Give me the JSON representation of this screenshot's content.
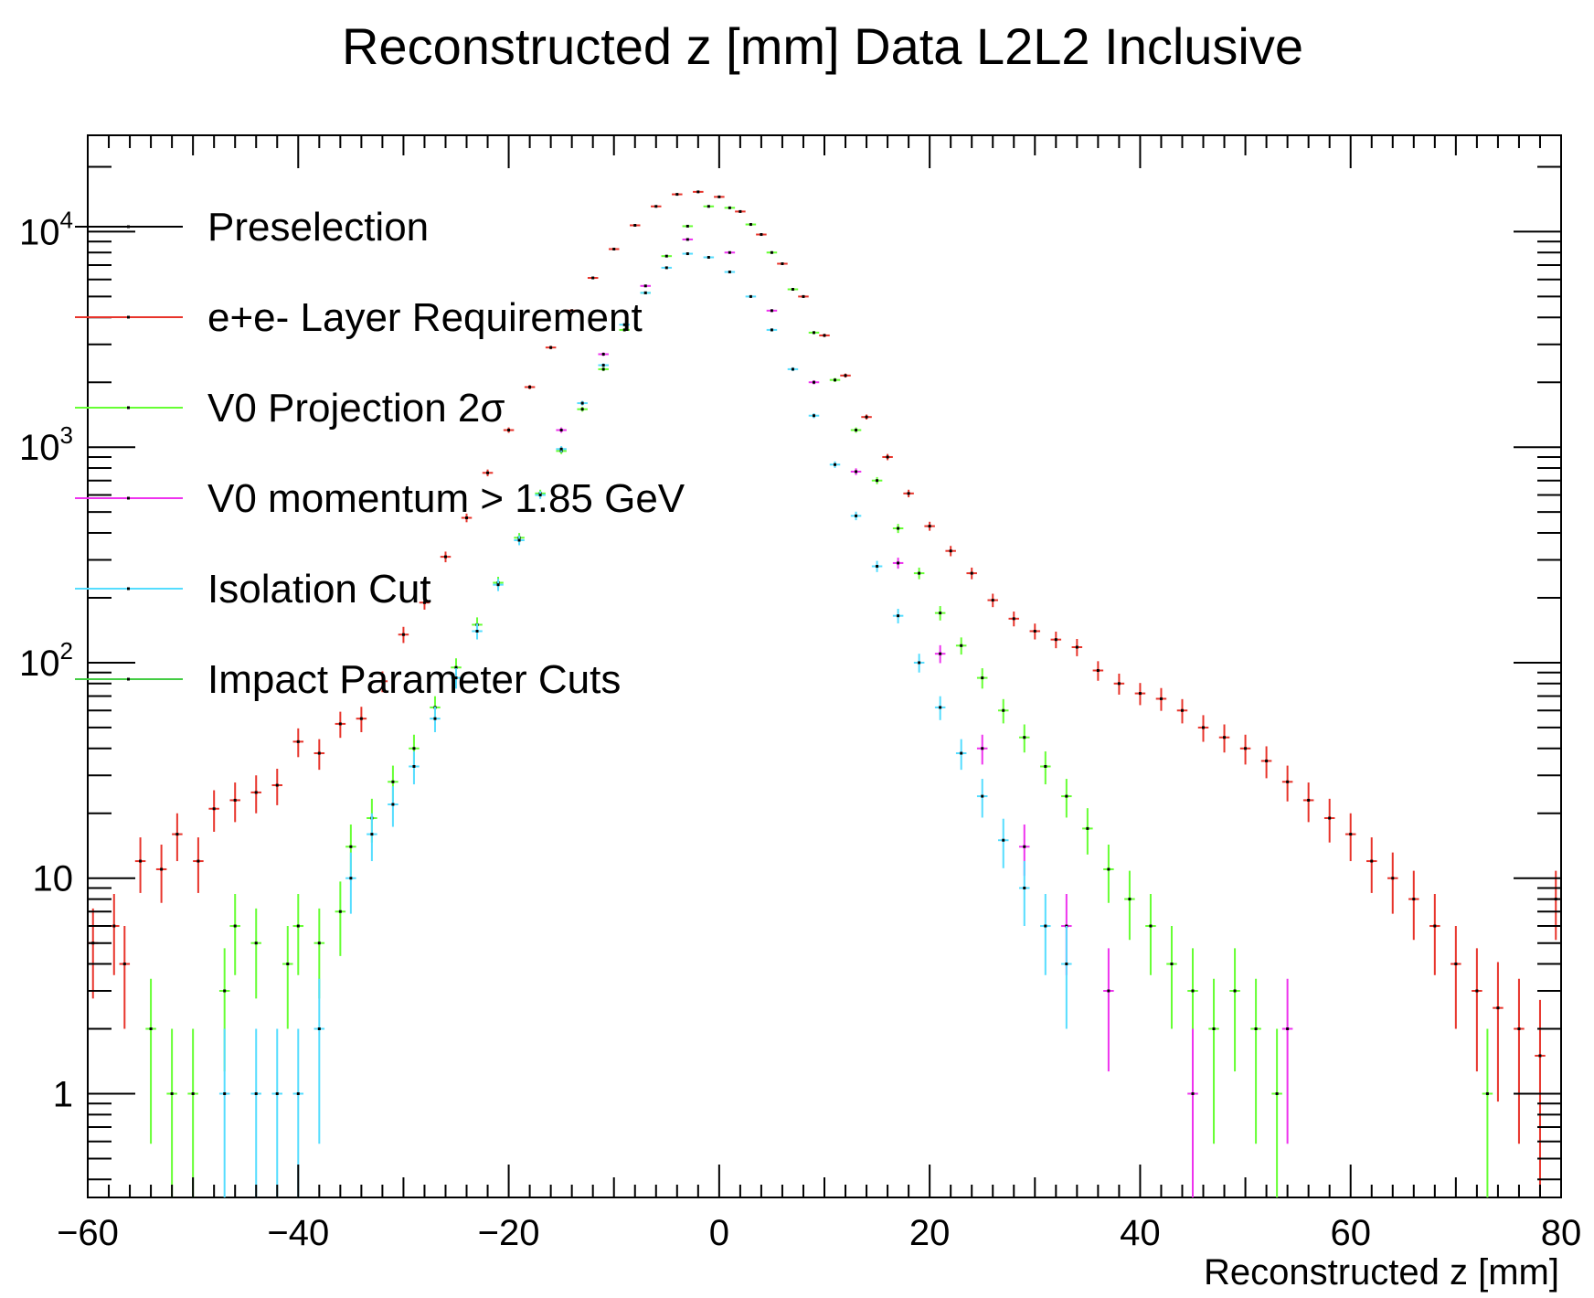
{
  "chart_data": {
    "type": "scatter",
    "title": "Reconstructed z [mm] Data L2L2 Inclusive",
    "xlabel": "Reconstructed z [mm]",
    "ylabel": "",
    "xlim": [
      -60,
      80
    ],
    "ylim": [
      0.33,
      28000
    ],
    "log_y": true,
    "grid": false,
    "legend_position": "top-left",
    "x_tick_labels": [
      "−60",
      "−40",
      "−20",
      "0",
      "20",
      "40",
      "60",
      "80"
    ],
    "x_tick_values": [
      -60,
      -40,
      -20,
      0,
      20,
      40,
      60,
      80
    ],
    "y_tick_labels": [
      {
        "value": 1,
        "base": "1",
        "exp": ""
      },
      {
        "value": 10,
        "base": "10",
        "exp": ""
      },
      {
        "value": 100,
        "base": "10",
        "exp": "2"
      },
      {
        "value": 1000,
        "base": "10",
        "exp": "3"
      },
      {
        "value": 10000,
        "base": "10",
        "exp": "4"
      }
    ],
    "series": [
      {
        "name": "Preselection",
        "color": "#000000",
        "sample": []
      },
      {
        "name": "e+e- Layer Requirement",
        "color": "#e8342b",
        "sample": [
          {
            "x": -59.5,
            "y": 5
          },
          {
            "x": -57.5,
            "y": 6
          },
          {
            "x": -56.5,
            "y": 4
          },
          {
            "x": -55,
            "y": 12
          },
          {
            "x": -53,
            "y": 11
          },
          {
            "x": -51.5,
            "y": 16
          },
          {
            "x": -49.5,
            "y": 12
          },
          {
            "x": -48,
            "y": 21
          },
          {
            "x": -46,
            "y": 23
          },
          {
            "x": -44,
            "y": 25
          },
          {
            "x": -42,
            "y": 27
          },
          {
            "x": -40,
            "y": 43
          },
          {
            "x": -38,
            "y": 38
          },
          {
            "x": -36,
            "y": 52
          },
          {
            "x": -34,
            "y": 55
          },
          {
            "x": -32,
            "y": 82
          },
          {
            "x": -30,
            "y": 135
          },
          {
            "x": -28,
            "y": 190
          },
          {
            "x": -26,
            "y": 310
          },
          {
            "x": -24,
            "y": 470
          },
          {
            "x": -22,
            "y": 760
          },
          {
            "x": -20,
            "y": 1200
          },
          {
            "x": -18,
            "y": 1900
          },
          {
            "x": -16,
            "y": 2900
          },
          {
            "x": -14,
            "y": 4300
          },
          {
            "x": -12,
            "y": 6100
          },
          {
            "x": -10,
            "y": 8300
          },
          {
            "x": -8,
            "y": 10700
          },
          {
            "x": -6,
            "y": 13100
          },
          {
            "x": -4,
            "y": 14900
          },
          {
            "x": -2,
            "y": 15300
          },
          {
            "x": 0,
            "y": 14500
          },
          {
            "x": 2,
            "y": 12400
          },
          {
            "x": 4,
            "y": 9700
          },
          {
            "x": 6,
            "y": 7100
          },
          {
            "x": 8,
            "y": 5000
          },
          {
            "x": 10,
            "y": 3300
          },
          {
            "x": 12,
            "y": 2150
          },
          {
            "x": 14,
            "y": 1380
          },
          {
            "x": 16,
            "y": 900
          },
          {
            "x": 18,
            "y": 610
          },
          {
            "x": 20,
            "y": 430
          },
          {
            "x": 22,
            "y": 330
          },
          {
            "x": 24,
            "y": 260
          },
          {
            "x": 26,
            "y": 195
          },
          {
            "x": 28,
            "y": 160
          },
          {
            "x": 30,
            "y": 140
          },
          {
            "x": 32,
            "y": 128
          },
          {
            "x": 34,
            "y": 118
          },
          {
            "x": 36,
            "y": 92
          },
          {
            "x": 38,
            "y": 80
          },
          {
            "x": 40,
            "y": 72
          },
          {
            "x": 42,
            "y": 68
          },
          {
            "x": 44,
            "y": 60
          },
          {
            "x": 46,
            "y": 50
          },
          {
            "x": 48,
            "y": 45
          },
          {
            "x": 50,
            "y": 40
          },
          {
            "x": 52,
            "y": 35
          },
          {
            "x": 54,
            "y": 28
          },
          {
            "x": 56,
            "y": 23
          },
          {
            "x": 58,
            "y": 19
          },
          {
            "x": 60,
            "y": 16
          },
          {
            "x": 62,
            "y": 12
          },
          {
            "x": 64,
            "y": 10
          },
          {
            "x": 66,
            "y": 8
          },
          {
            "x": 68,
            "y": 6
          },
          {
            "x": 70,
            "y": 4
          },
          {
            "x": 72,
            "y": 3
          },
          {
            "x": 74,
            "y": 2.5
          },
          {
            "x": 76,
            "y": 2
          },
          {
            "x": 78,
            "y": 1.5
          },
          {
            "x": 79.5,
            "y": 8
          }
        ]
      },
      {
        "name": "V0 Projection 2σ",
        "color": "#66ff33",
        "sample": [
          {
            "x": -54,
            "y": 2
          },
          {
            "x": -52,
            "y": 1
          },
          {
            "x": -50,
            "y": 1
          },
          {
            "x": -47,
            "y": 3
          },
          {
            "x": -46,
            "y": 6
          },
          {
            "x": -44,
            "y": 5
          },
          {
            "x": -41,
            "y": 4
          },
          {
            "x": -40,
            "y": 6
          },
          {
            "x": -38,
            "y": 5
          },
          {
            "x": -36,
            "y": 7
          },
          {
            "x": -35,
            "y": 14
          },
          {
            "x": -33,
            "y": 19
          },
          {
            "x": -31,
            "y": 28
          },
          {
            "x": -29,
            "y": 40
          },
          {
            "x": -27,
            "y": 62
          },
          {
            "x": -25,
            "y": 95
          },
          {
            "x": -23,
            "y": 150
          },
          {
            "x": -21,
            "y": 235
          },
          {
            "x": -19,
            "y": 380
          },
          {
            "x": -17,
            "y": 610
          },
          {
            "x": -15,
            "y": 960
          },
          {
            "x": -13,
            "y": 1500
          },
          {
            "x": -11,
            "y": 2300
          },
          {
            "x": -9,
            "y": 3500
          },
          {
            "x": -7,
            "y": 5200
          },
          {
            "x": -5,
            "y": 7700
          },
          {
            "x": -3,
            "y": 10600
          },
          {
            "x": -1,
            "y": 13100
          },
          {
            "x": 1,
            "y": 12900
          },
          {
            "x": 3,
            "y": 10800
          },
          {
            "x": 5,
            "y": 8000
          },
          {
            "x": 7,
            "y": 5400
          },
          {
            "x": 9,
            "y": 3400
          },
          {
            "x": 11,
            "y": 2050
          },
          {
            "x": 13,
            "y": 1200
          },
          {
            "x": 15,
            "y": 700
          },
          {
            "x": 17,
            "y": 420
          },
          {
            "x": 19,
            "y": 260
          },
          {
            "x": 21,
            "y": 170
          },
          {
            "x": 23,
            "y": 120
          },
          {
            "x": 25,
            "y": 85
          },
          {
            "x": 27,
            "y": 60
          },
          {
            "x": 29,
            "y": 45
          },
          {
            "x": 31,
            "y": 33
          },
          {
            "x": 33,
            "y": 24
          },
          {
            "x": 35,
            "y": 17
          },
          {
            "x": 37,
            "y": 11
          },
          {
            "x": 39,
            "y": 8
          },
          {
            "x": 41,
            "y": 6
          },
          {
            "x": 43,
            "y": 4
          },
          {
            "x": 45,
            "y": 3
          },
          {
            "x": 47,
            "y": 2
          },
          {
            "x": 49,
            "y": 3
          },
          {
            "x": 51,
            "y": 2
          },
          {
            "x": 53,
            "y": 1
          },
          {
            "x": 73,
            "y": 1
          }
        ]
      },
      {
        "name": "V0 momentum > 1.85 GeV",
        "color": "#ee33ee",
        "sample": [
          {
            "x": -15,
            "y": 1200
          },
          {
            "x": -11,
            "y": 2700
          },
          {
            "x": -7,
            "y": 5600
          },
          {
            "x": -3,
            "y": 9200
          },
          {
            "x": 1,
            "y": 8000
          },
          {
            "x": 5,
            "y": 4300
          },
          {
            "x": 9,
            "y": 2000
          },
          {
            "x": 13,
            "y": 770
          },
          {
            "x": 17,
            "y": 290
          },
          {
            "x": 21,
            "y": 110
          },
          {
            "x": 25,
            "y": 40
          },
          {
            "x": 29,
            "y": 14
          },
          {
            "x": 33,
            "y": 6
          },
          {
            "x": 37,
            "y": 3
          },
          {
            "x": 45,
            "y": 1
          },
          {
            "x": 54,
            "y": 2
          }
        ]
      },
      {
        "name": "Isolation Cut",
        "color": "#55ddff",
        "sample": [
          {
            "x": -47,
            "y": 1
          },
          {
            "x": -44,
            "y": 1
          },
          {
            "x": -42,
            "y": 1
          },
          {
            "x": -40,
            "y": 1
          },
          {
            "x": -38,
            "y": 2
          },
          {
            "x": -35,
            "y": 10
          },
          {
            "x": -33,
            "y": 16
          },
          {
            "x": -31,
            "y": 22
          },
          {
            "x": -29,
            "y": 33
          },
          {
            "x": -27,
            "y": 55
          },
          {
            "x": -25,
            "y": 85
          },
          {
            "x": -23,
            "y": 140
          },
          {
            "x": -21,
            "y": 230
          },
          {
            "x": -19,
            "y": 370
          },
          {
            "x": -17,
            "y": 600
          },
          {
            "x": -15,
            "y": 980
          },
          {
            "x": -13,
            "y": 1600
          },
          {
            "x": -11,
            "y": 2400
          },
          {
            "x": -9,
            "y": 3700
          },
          {
            "x": -7,
            "y": 5200
          },
          {
            "x": -5,
            "y": 6800
          },
          {
            "x": -3,
            "y": 7900
          },
          {
            "x": -1,
            "y": 7600
          },
          {
            "x": 1,
            "y": 6500
          },
          {
            "x": 3,
            "y": 5000
          },
          {
            "x": 5,
            "y": 3500
          },
          {
            "x": 7,
            "y": 2300
          },
          {
            "x": 9,
            "y": 1400
          },
          {
            "x": 11,
            "y": 830
          },
          {
            "x": 13,
            "y": 480
          },
          {
            "x": 15,
            "y": 280
          },
          {
            "x": 17,
            "y": 165
          },
          {
            "x": 19,
            "y": 100
          },
          {
            "x": 21,
            "y": 62
          },
          {
            "x": 23,
            "y": 38
          },
          {
            "x": 25,
            "y": 24
          },
          {
            "x": 27,
            "y": 15
          },
          {
            "x": 29,
            "y": 9
          },
          {
            "x": 31,
            "y": 6
          },
          {
            "x": 33,
            "y": 4
          }
        ]
      },
      {
        "name": "Impact Parameter Cuts",
        "color": "#44cc44",
        "sample": []
      }
    ]
  }
}
